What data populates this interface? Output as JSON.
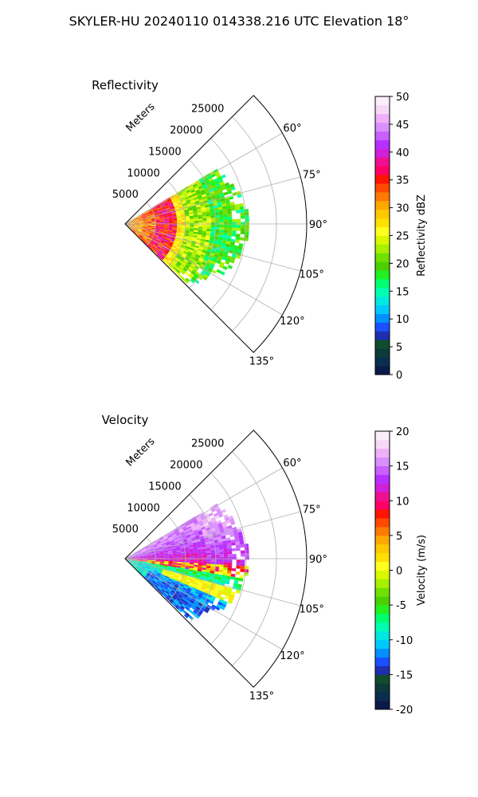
{
  "figure": {
    "suptitle": "SKYLER-HU  20240110  014338.216 UTC Elevation 18°"
  },
  "chart_data": [
    {
      "type": "heatmap",
      "projection": "polar-sector",
      "title": "Reflectivity",
      "range_label": "Meters",
      "azimuth_range_deg": [
        45,
        135
      ],
      "azimuth_ticks": [
        "60°",
        "75°",
        "90°",
        "105°",
        "120°",
        "135°"
      ],
      "range_ticks": [
        "5000",
        "10000",
        "15000",
        "20000",
        "25000"
      ],
      "range_max_m": 30000,
      "data_extent_m": 20000,
      "grid": true,
      "colorbar": {
        "label": "Reflectivity dBZ",
        "min": 0,
        "max": 50,
        "ticks": [
          "0",
          "5",
          "10",
          "15",
          "20",
          "25",
          "30",
          "35",
          "40",
          "45",
          "50"
        ],
        "palette": [
          "#0a1a4a",
          "#0b2e4f",
          "#0d3a3a",
          "#0f4d2c",
          "#1d2fb0",
          "#1a50ff",
          "#0090ff",
          "#00c8ff",
          "#00e8e0",
          "#00ffb0",
          "#00ff70",
          "#22f020",
          "#4ad000",
          "#70e000",
          "#a8f000",
          "#d8f800",
          "#ffff20",
          "#ffe000",
          "#ffc800",
          "#ffa800",
          "#ff7a00",
          "#ff4a00",
          "#ff1400",
          "#ff0066",
          "#ee1090",
          "#d020d8",
          "#b830ff",
          "#c860ff",
          "#d890ff",
          "#eeb0f8",
          "#f6d8f6",
          "#fbeefb"
        ]
      },
      "pattern": "concentric bands: 30–38 dBZ near radar, red/magenta ring ~5–8 km, yellow/green 20–28 dBZ outward to ~18 km"
    },
    {
      "type": "heatmap",
      "projection": "polar-sector",
      "title": "Velocity",
      "range_label": "Meters",
      "azimuth_range_deg": [
        45,
        135
      ],
      "azimuth_ticks": [
        "60°",
        "75°",
        "90°",
        "105°",
        "120°",
        "135°"
      ],
      "range_ticks": [
        "5000",
        "10000",
        "15000",
        "20000",
        "25000"
      ],
      "range_max_m": 30000,
      "data_extent_m": 20000,
      "grid": true,
      "colorbar": {
        "label": "Velocity (m/s)",
        "min": -20,
        "max": 20,
        "ticks": [
          "-20",
          "-15",
          "-10",
          "-5",
          "0",
          "5",
          "10",
          "15",
          "20"
        ],
        "palette": [
          "#0a1a4a",
          "#0b2e4f",
          "#0d3a3a",
          "#0f4d2c",
          "#1d2fb0",
          "#1a50ff",
          "#0090ff",
          "#00c8ff",
          "#00e8e0",
          "#00ffb0",
          "#00ff70",
          "#22f020",
          "#4ad000",
          "#70e000",
          "#a8f000",
          "#d8f800",
          "#ffff20",
          "#ffe000",
          "#ffc800",
          "#ffa800",
          "#ff7a00",
          "#ff4a00",
          "#ff1400",
          "#ff0066",
          "#ee1090",
          "#d020d8",
          "#b830ff",
          "#c860ff",
          "#d890ff",
          "#eeb0f8",
          "#f6d8f6",
          "#fbeefb"
        ]
      },
      "pattern": "dipole: +10 to +15 m/s (red/magenta) north of ~95°, -8 to -13 m/s (green/cyan) south, with yellow/orange transition"
    }
  ]
}
